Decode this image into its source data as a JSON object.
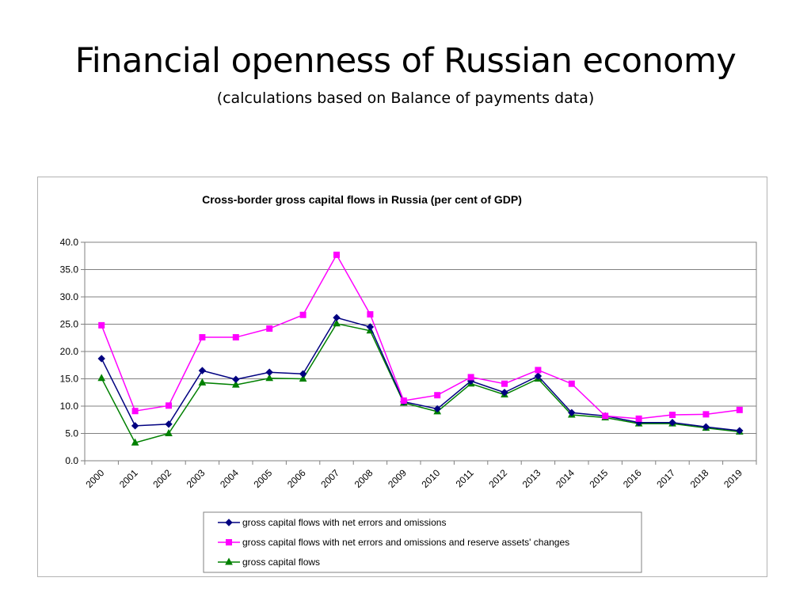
{
  "slide": {
    "title": "Financial openness of Russian economy",
    "subtitle": "(calculations based on Balance of payments data)"
  },
  "chart_data": {
    "type": "line",
    "title": "Cross-border gross capital flows in Russia (per cent of GDP)",
    "xlabel": "",
    "ylabel": "",
    "x": [
      "2000",
      "2001",
      "2002",
      "2003",
      "2004",
      "2005",
      "2006",
      "2007",
      "2008",
      "2009",
      "2010",
      "2011",
      "2012",
      "2013",
      "2014",
      "2015",
      "2016",
      "2017",
      "2018",
      "2019"
    ],
    "ylim": [
      0,
      40
    ],
    "yticks": [
      "0.0",
      "5.0",
      "10.0",
      "15.0",
      "20.0",
      "25.0",
      "30.0",
      "35.0",
      "40.0"
    ],
    "grid": "horizontal",
    "legend_position": "bottom",
    "series": [
      {
        "name": "gross capital flows with net errors and omissions",
        "color": "#000080",
        "marker": "diamond",
        "values": [
          18.7,
          6.4,
          6.7,
          16.5,
          14.9,
          16.2,
          15.9,
          26.2,
          24.5,
          10.8,
          9.5,
          14.6,
          12.5,
          15.5,
          8.8,
          8.2,
          7.0,
          7.0,
          6.2,
          5.5
        ]
      },
      {
        "name": "gross capital flows with net errors and omissions and reserve assets' changes",
        "color": "#ff00ff",
        "marker": "square",
        "values": [
          24.8,
          9.1,
          10.1,
          22.6,
          22.6,
          24.2,
          26.7,
          37.7,
          26.8,
          11.0,
          12.0,
          15.3,
          14.1,
          16.6,
          14.1,
          8.2,
          7.7,
          8.4,
          8.5,
          9.3
        ]
      },
      {
        "name": "gross capital flows",
        "color": "#008000",
        "marker": "triangle",
        "values": [
          15.1,
          3.3,
          5.0,
          14.3,
          13.9,
          15.1,
          15.0,
          25.1,
          23.8,
          10.6,
          9.0,
          14.1,
          12.1,
          15.0,
          8.4,
          7.9,
          6.8,
          6.8,
          6.0,
          5.3
        ]
      }
    ]
  }
}
